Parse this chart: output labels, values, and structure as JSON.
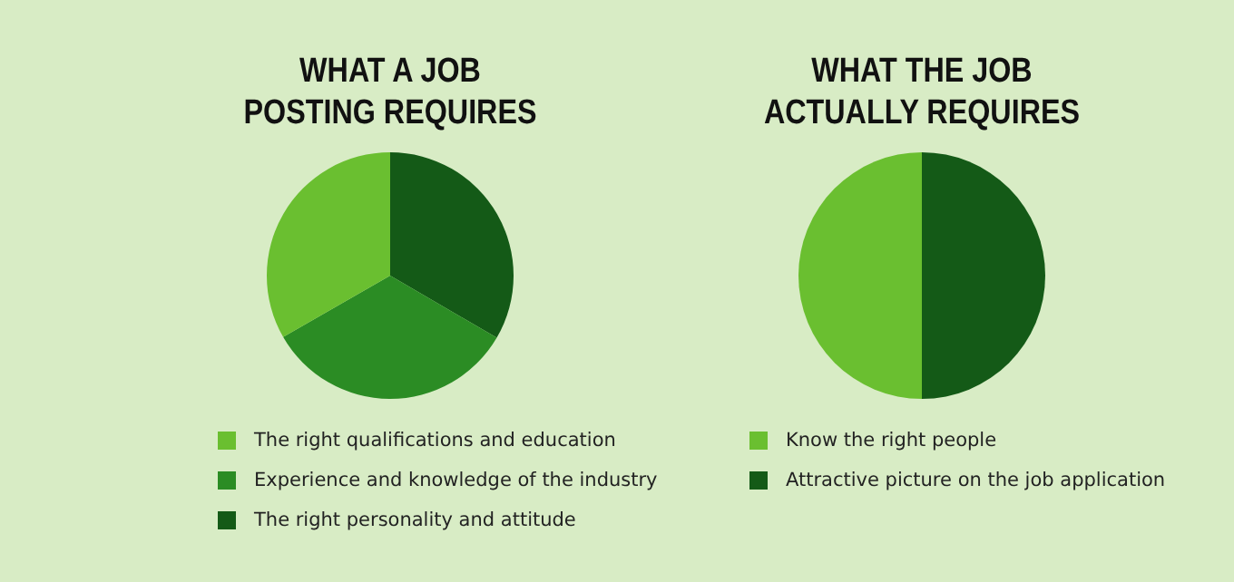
{
  "chart_data": [
    {
      "type": "pie",
      "title": "WHAT A JOB\nPOSTING REQUIRES",
      "categories": [
        "The right qualifications and education",
        "Experience and knowledge of the industry",
        "The right personality and attitude"
      ],
      "values": [
        33.3,
        33.3,
        33.4
      ],
      "colors": [
        "#6abf30",
        "#2b8c24",
        "#145a17"
      ],
      "legend": "bottom"
    },
    {
      "type": "pie",
      "title": "WHAT THE JOB\nACTUALLY REQUIRES",
      "categories": [
        "Know the right people",
        "Attractive picture on the job application"
      ],
      "values": [
        50,
        50
      ],
      "colors": [
        "#6abf30",
        "#145a17"
      ],
      "legend": "bottom"
    }
  ]
}
